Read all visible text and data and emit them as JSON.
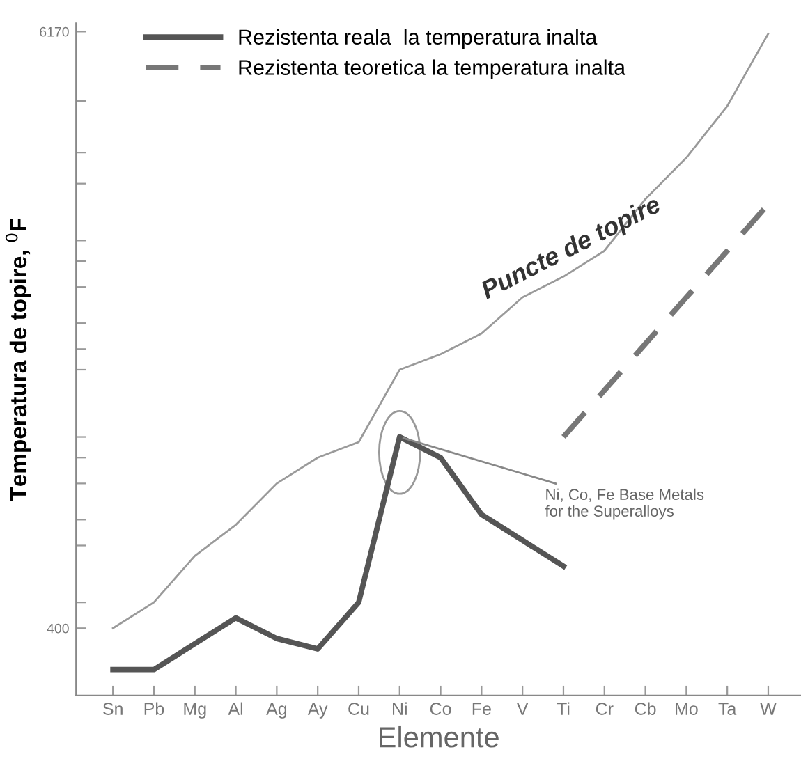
{
  "chart_data": {
    "type": "line",
    "xlabel": "Elemente",
    "ylabel": "Temperatura de topire, $^{0}$F",
    "categories": [
      "Sn",
      "Pb",
      "Mg",
      "Al",
      "Ag",
      "Ay",
      "Cu",
      "Ni",
      "Co",
      "Fe",
      "V",
      "Ti",
      "Cr",
      "Cb",
      "Mo",
      "Ta",
      "W"
    ],
    "series": [
      {
        "name": "Rezistenta reala  la temperatura inalta",
        "color": "#555555",
        "line_style": "solid",
        "values": [
          0,
          0,
          250,
          500,
          300,
          200,
          650,
          2250,
          2050,
          1500,
          1250,
          1000,
          null,
          null,
          null,
          null,
          null
        ]
      },
      {
        "name": "Rezistenta teoretica la temperatura inalta",
        "color": "#777777",
        "line_style": "dashed",
        "values": [
          null,
          null,
          null,
          null,
          null,
          null,
          null,
          null,
          null,
          null,
          null,
          2250,
          2700,
          3150,
          3600,
          4050,
          4500
        ]
      },
      {
        "color": "#9a9a9a",
        "line_style": "solid",
        "values": [
          400,
          650,
          1100,
          1400,
          1800,
          2050,
          2200,
          2900,
          3050,
          3250,
          3600,
          3800,
          4050,
          4550,
          4950,
          5450,
          6150
        ]
      }
    ],
    "ylim": [
      -250,
      6250
    ],
    "yticks": [
      {
        "value": 650,
        "label": null
      },
      400,
      {
        "value": 1200,
        "label": null
      },
      {
        "value": 1450,
        "label": null
      },
      {
        "value": 1800,
        "label": null
      },
      {
        "value": 2050,
        "label": null
      },
      {
        "value": 2250,
        "label": null
      },
      {
        "value": 2900,
        "label": null
      },
      {
        "value": 3100,
        "label": null
      },
      {
        "value": 3350,
        "label": null
      },
      {
        "value": 3700,
        "label": null
      },
      {
        "value": 3950,
        "label": null
      },
      {
        "value": 4150,
        "label": null
      },
      {
        "value": 4700,
        "label": null
      },
      {
        "value": 5000,
        "label": null
      },
      {
        "value": 5500,
        "label": null
      },
      6170
    ],
    "grid": false,
    "legend": "top left",
    "marker": "none",
    "annotations": [
      "Puncte de topire",
      {
        "text": "Ni, Co, Fe Base Metals\nfor the Superalloys",
        "x": "Ni",
        "y": 2250
      }
    ]
  }
}
